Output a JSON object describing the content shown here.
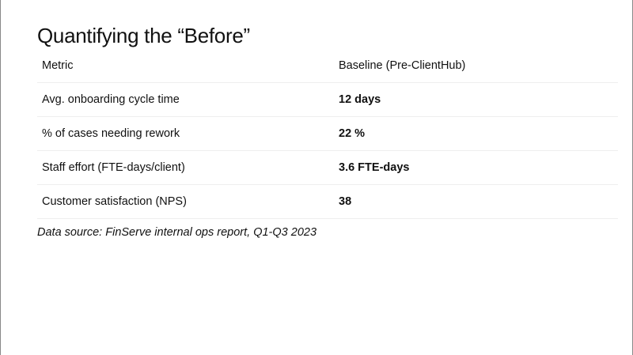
{
  "slide": {
    "title": "Quantifying the “Before”",
    "table": {
      "headers": [
        "Metric",
        "Baseline (Pre-ClientHub)"
      ],
      "rows": [
        [
          "Avg. onboarding cycle time",
          "12 days"
        ],
        [
          "% of cases needing rework",
          "22 %"
        ],
        [
          "Staff effort (FTE-days/client)",
          "3.6 FTE-days"
        ],
        [
          "Customer satisfaction (NPS)",
          "38"
        ]
      ]
    },
    "caption": "Data source: FinServe internal ops report, Q1-Q3 2023"
  }
}
